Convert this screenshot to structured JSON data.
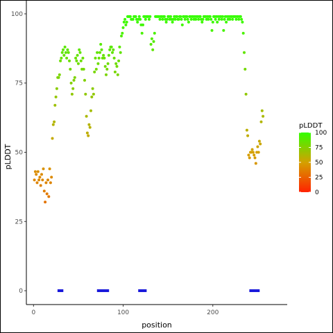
{
  "chart_data": {
    "type": "scatter",
    "title": "",
    "xlabel": "position",
    "ylabel": "pLDDT",
    "xlim": [
      -8,
      283
    ],
    "ylim": [
      -5,
      105
    ],
    "x_ticks": [
      0,
      100,
      200
    ],
    "y_ticks": [
      0,
      25,
      50,
      75,
      100
    ],
    "grid": false,
    "color_scale": {
      "title": "pLDDT",
      "ticks": [
        0,
        25,
        50,
        75,
        100
      ],
      "low_color": "#ff2200",
      "mid_color": "#d4a000",
      "high_color": "#33ff00",
      "placement": "right"
    },
    "series": [
      {
        "values": [
          [
            1,
            40
          ],
          [
            2,
            43
          ],
          [
            3,
            42
          ],
          [
            4,
            39
          ],
          [
            5,
            43
          ],
          [
            6,
            40
          ],
          [
            7,
            41
          ],
          [
            8,
            38
          ],
          [
            9,
            42
          ],
          [
            10,
            40
          ],
          [
            11,
            44
          ],
          [
            12,
            36
          ],
          [
            13,
            32
          ],
          [
            14,
            39
          ],
          [
            15,
            35
          ],
          [
            16,
            40
          ],
          [
            17,
            34
          ],
          [
            18,
            44
          ],
          [
            19,
            39
          ],
          [
            20,
            41
          ],
          [
            21,
            55
          ],
          [
            22,
            60
          ],
          [
            23,
            61
          ],
          [
            24,
            67
          ],
          [
            25,
            70
          ],
          [
            26,
            73
          ],
          [
            27,
            77
          ],
          [
            28,
            77
          ],
          [
            29,
            78
          ],
          [
            30,
            83
          ],
          [
            31,
            84
          ],
          [
            32,
            86
          ],
          [
            33,
            87
          ],
          [
            34,
            85
          ],
          [
            35,
            88
          ],
          [
            36,
            86
          ],
          [
            37,
            84
          ],
          [
            38,
            87
          ],
          [
            39,
            86
          ],
          [
            40,
            83
          ],
          [
            41,
            80
          ],
          [
            42,
            75
          ],
          [
            43,
            71
          ],
          [
            44,
            73
          ],
          [
            45,
            76
          ],
          [
            46,
            77
          ],
          [
            47,
            84
          ],
          [
            48,
            83
          ],
          [
            49,
            85
          ],
          [
            50,
            82
          ],
          [
            51,
            87
          ],
          [
            52,
            86
          ],
          [
            53,
            83
          ],
          [
            54,
            80
          ],
          [
            55,
            84
          ],
          [
            56,
            80
          ],
          [
            57,
            76
          ],
          [
            58,
            71
          ],
          [
            59,
            63
          ],
          [
            60,
            57
          ],
          [
            61,
            56
          ],
          [
            62,
            60
          ],
          [
            63,
            59
          ],
          [
            64,
            65
          ],
          [
            65,
            70
          ],
          [
            66,
            73
          ],
          [
            67,
            71
          ],
          [
            68,
            79
          ],
          [
            69,
            84
          ],
          [
            70,
            80
          ],
          [
            71,
            86
          ],
          [
            72,
            82
          ],
          [
            73,
            84
          ],
          [
            74,
            86
          ],
          [
            75,
            89
          ],
          [
            76,
            87
          ],
          [
            77,
            84
          ],
          [
            78,
            85
          ],
          [
            79,
            84
          ],
          [
            80,
            81
          ],
          [
            81,
            78
          ],
          [
            82,
            80
          ],
          [
            83,
            82
          ],
          [
            84,
            85
          ],
          [
            85,
            87
          ],
          [
            86,
            88
          ],
          [
            87,
            88
          ],
          [
            88,
            86
          ],
          [
            89,
            87
          ],
          [
            90,
            84
          ],
          [
            91,
            79
          ],
          [
            92,
            82
          ],
          [
            93,
            81
          ],
          [
            94,
            78
          ],
          [
            95,
            83
          ],
          [
            96,
            88
          ],
          [
            97,
            86
          ],
          [
            98,
            92
          ],
          [
            99,
            93
          ],
          [
            100,
            95
          ],
          [
            101,
            97
          ],
          [
            102,
            98
          ],
          [
            103,
            96
          ],
          [
            104,
            97
          ],
          [
            105,
            99
          ],
          [
            106,
            99
          ],
          [
            107,
            99
          ],
          [
            108,
            99
          ],
          [
            109,
            98
          ],
          [
            110,
            98
          ],
          [
            111,
            98
          ],
          [
            112,
            99
          ],
          [
            113,
            99
          ],
          [
            114,
            99
          ],
          [
            115,
            98
          ],
          [
            116,
            97
          ],
          [
            117,
            98
          ],
          [
            118,
            99
          ],
          [
            119,
            98
          ],
          [
            120,
            96
          ],
          [
            121,
            93
          ],
          [
            122,
            96
          ],
          [
            123,
            99
          ],
          [
            124,
            99
          ],
          [
            125,
            98
          ],
          [
            126,
            99
          ],
          [
            127,
            99
          ],
          [
            128,
            99
          ],
          [
            129,
            98
          ],
          [
            130,
            99
          ],
          [
            131,
            89
          ],
          [
            132,
            91
          ],
          [
            133,
            87
          ],
          [
            134,
            90
          ],
          [
            135,
            93
          ],
          [
            136,
            99
          ],
          [
            137,
            99
          ],
          [
            138,
            99
          ],
          [
            139,
            99
          ],
          [
            140,
            99
          ],
          [
            141,
            98
          ],
          [
            142,
            99
          ],
          [
            143,
            99
          ],
          [
            144,
            98
          ],
          [
            145,
            99
          ],
          [
            146,
            99
          ],
          [
            147,
            98
          ],
          [
            148,
            97
          ],
          [
            149,
            98
          ],
          [
            150,
            99
          ],
          [
            151,
            99
          ],
          [
            152,
            98
          ],
          [
            153,
            99
          ],
          [
            154,
            98
          ],
          [
            155,
            97
          ],
          [
            156,
            98
          ],
          [
            157,
            99
          ],
          [
            158,
            98
          ],
          [
            159,
            99
          ],
          [
            160,
            99
          ],
          [
            161,
            98
          ],
          [
            162,
            98
          ],
          [
            163,
            99
          ],
          [
            164,
            99
          ],
          [
            165,
            98
          ],
          [
            166,
            96
          ],
          [
            167,
            99
          ],
          [
            168,
            99
          ],
          [
            169,
            98
          ],
          [
            170,
            99
          ],
          [
            171,
            99
          ],
          [
            172,
            98
          ],
          [
            173,
            97
          ],
          [
            174,
            99
          ],
          [
            175,
            99
          ],
          [
            176,
            98
          ],
          [
            177,
            99
          ],
          [
            178,
            99
          ],
          [
            179,
            98
          ],
          [
            180,
            99
          ],
          [
            181,
            98
          ],
          [
            182,
            99
          ],
          [
            183,
            99
          ],
          [
            184,
            98
          ],
          [
            185,
            99
          ],
          [
            186,
            99
          ],
          [
            187,
            98
          ],
          [
            188,
            97
          ],
          [
            189,
            98
          ],
          [
            190,
            99
          ],
          [
            191,
            99
          ],
          [
            192,
            99
          ],
          [
            193,
            98
          ],
          [
            194,
            99
          ],
          [
            195,
            98
          ],
          [
            196,
            99
          ],
          [
            197,
            99
          ],
          [
            198,
            98
          ],
          [
            199,
            94
          ],
          [
            200,
            97
          ],
          [
            201,
            99
          ],
          [
            202,
            99
          ],
          [
            203,
            98
          ],
          [
            204,
            99
          ],
          [
            205,
            97
          ],
          [
            206,
            99
          ],
          [
            207,
            98
          ],
          [
            208,
            99
          ],
          [
            209,
            99
          ],
          [
            210,
            98
          ],
          [
            211,
            99
          ],
          [
            212,
            94
          ],
          [
            213,
            98
          ],
          [
            214,
            99
          ],
          [
            215,
            97
          ],
          [
            216,
            99
          ],
          [
            217,
            98
          ],
          [
            218,
            99
          ],
          [
            219,
            98
          ],
          [
            220,
            99
          ],
          [
            221,
            99
          ],
          [
            222,
            98
          ],
          [
            223,
            99
          ],
          [
            224,
            99
          ],
          [
            225,
            99
          ],
          [
            226,
            98
          ],
          [
            227,
            99
          ],
          [
            228,
            99
          ],
          [
            229,
            98
          ],
          [
            230,
            99
          ],
          [
            231,
            99
          ],
          [
            232,
            98
          ],
          [
            233,
            97
          ],
          [
            234,
            93
          ],
          [
            235,
            86
          ],
          [
            236,
            80
          ],
          [
            237,
            71
          ],
          [
            238,
            58
          ],
          [
            239,
            56
          ],
          [
            240,
            49
          ],
          [
            241,
            48
          ],
          [
            242,
            50
          ],
          [
            243,
            50
          ],
          [
            244,
            51
          ],
          [
            245,
            50
          ],
          [
            246,
            49
          ],
          [
            247,
            48
          ],
          [
            248,
            46
          ],
          [
            249,
            50
          ],
          [
            250,
            52
          ],
          [
            251,
            50
          ],
          [
            252,
            54
          ],
          [
            253,
            53
          ],
          [
            254,
            61
          ],
          [
            255,
            65
          ],
          [
            256,
            63
          ]
        ]
      },
      {
        "name": "",
        "values": [
          [
            28,
            0
          ],
          [
            29,
            0
          ],
          [
            30,
            0
          ],
          [
            31,
            0
          ],
          [
            32,
            0
          ],
          [
            72,
            0
          ],
          [
            73,
            0
          ],
          [
            74,
            0
          ],
          [
            75,
            0
          ],
          [
            76,
            0
          ],
          [
            77,
            0
          ],
          [
            78,
            0
          ],
          [
            79,
            0
          ],
          [
            80,
            0
          ],
          [
            82,
            0
          ],
          [
            83,
            0
          ],
          [
            118,
            0
          ],
          [
            119,
            0
          ],
          [
            120,
            0
          ],
          [
            121,
            0
          ],
          [
            122,
            0
          ],
          [
            123,
            0
          ],
          [
            124,
            0
          ],
          [
            125,
            0
          ],
          [
            242,
            0
          ],
          [
            243,
            0
          ],
          [
            244,
            0
          ],
          [
            245,
            0
          ],
          [
            246,
            0
          ],
          [
            247,
            0
          ],
          [
            248,
            0
          ],
          [
            249,
            0
          ],
          [
            250,
            0
          ],
          [
            251,
            0
          ]
        ],
        "color": "#1a1adb"
      }
    ]
  }
}
